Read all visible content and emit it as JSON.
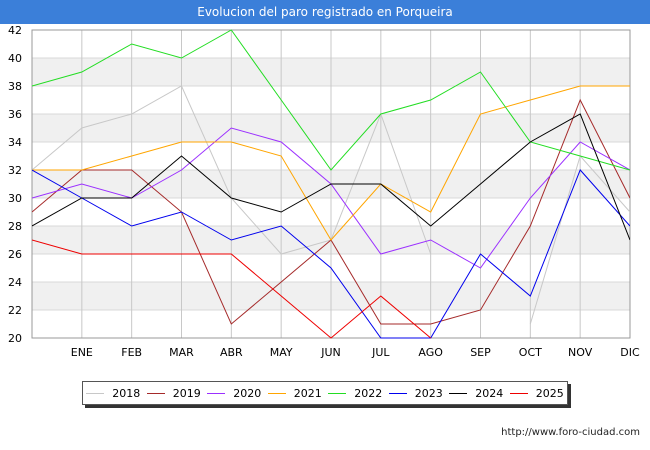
{
  "header": {
    "title": "Evolucion del paro registrado en Porqueira"
  },
  "footer": {
    "url": "http://www.foro-ciudad.com"
  },
  "chart_data": {
    "type": "line",
    "title": "Evolucion del paro registrado en Porqueira",
    "xlabel": "",
    "ylabel": "",
    "categories": [
      "",
      "ENE",
      "FEB",
      "MAR",
      "ABR",
      "MAY",
      "JUN",
      "JUL",
      "AGO",
      "SEP",
      "OCT",
      "NOV",
      "DIC"
    ],
    "ylim": [
      20,
      42
    ],
    "yticks": [
      20,
      22,
      24,
      26,
      28,
      30,
      32,
      34,
      36,
      38,
      40,
      42
    ],
    "grid": true,
    "legend_position": "bottom",
    "series": [
      {
        "name": "2018",
        "color": "#c8c8c8",
        "values": [
          32,
          35,
          36,
          38,
          30,
          26,
          27,
          36,
          26,
          null,
          21,
          33,
          29
        ]
      },
      {
        "name": "2019",
        "color": "#a52a2a",
        "values": [
          29,
          32,
          32,
          29,
          21,
          24,
          27,
          21,
          21,
          22,
          28,
          37,
          30
        ]
      },
      {
        "name": "2020",
        "color": "#9b30ff",
        "values": [
          30,
          31,
          30,
          32,
          35,
          34,
          31,
          26,
          27,
          25,
          30,
          34,
          32
        ]
      },
      {
        "name": "2021",
        "color": "#ffa500",
        "values": [
          32,
          32,
          33,
          34,
          34,
          33,
          27,
          31,
          29,
          36,
          37,
          38,
          38
        ]
      },
      {
        "name": "2022",
        "color": "#22dd22",
        "values": [
          38,
          39,
          41,
          40,
          42,
          37,
          32,
          36,
          37,
          39,
          34,
          33,
          32
        ]
      },
      {
        "name": "2023",
        "color": "#0000ee",
        "values": [
          32,
          30,
          28,
          29,
          27,
          28,
          25,
          20,
          20,
          26,
          23,
          32,
          28
        ]
      },
      {
        "name": "2024",
        "color": "#000000",
        "values": [
          28,
          30,
          30,
          33,
          30,
          29,
          31,
          31,
          28,
          31,
          34,
          36,
          27
        ]
      },
      {
        "name": "2025",
        "color": "#ee0000",
        "values": [
          27,
          26,
          26,
          26,
          26,
          23,
          20,
          23,
          20,
          null,
          null,
          null,
          null
        ]
      }
    ]
  }
}
